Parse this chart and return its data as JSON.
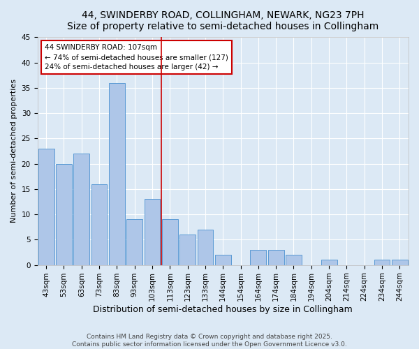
{
  "title": "44, SWINDERBY ROAD, COLLINGHAM, NEWARK, NG23 7PH",
  "subtitle": "Size of property relative to semi-detached houses in Collingham",
  "xlabel": "Distribution of semi-detached houses by size in Collingham",
  "ylabel": "Number of semi-detached properties",
  "categories": [
    "43sqm",
    "53sqm",
    "63sqm",
    "73sqm",
    "83sqm",
    "93sqm",
    "103sqm",
    "113sqm",
    "123sqm",
    "133sqm",
    "144sqm",
    "154sqm",
    "164sqm",
    "174sqm",
    "184sqm",
    "194sqm",
    "204sqm",
    "214sqm",
    "224sqm",
    "234sqm",
    "244sqm"
  ],
  "values": [
    23,
    20,
    22,
    16,
    36,
    9,
    13,
    9,
    6,
    7,
    2,
    0,
    3,
    3,
    2,
    0,
    1,
    0,
    0,
    1,
    1
  ],
  "bar_color": "#aec6e8",
  "bar_edge_color": "#5b9bd5",
  "background_color": "#dce9f5",
  "grid_color": "#ffffff",
  "vline_position": 6.5,
  "vline_color": "#cc0000",
  "annotation_text": "44 SWINDERBY ROAD: 107sqm\n← 74% of semi-detached houses are smaller (127)\n24% of semi-detached houses are larger (42) →",
  "annotation_box_color": "#ffffff",
  "annotation_box_edge": "#cc0000",
  "ylim": [
    0,
    45
  ],
  "yticks": [
    0,
    5,
    10,
    15,
    20,
    25,
    30,
    35,
    40,
    45
  ],
  "footnote": "Contains HM Land Registry data © Crown copyright and database right 2025.\nContains public sector information licensed under the Open Government Licence v3.0.",
  "title_fontsize": 10,
  "xlabel_fontsize": 9,
  "ylabel_fontsize": 8,
  "tick_fontsize": 7.5,
  "annotation_fontsize": 7.5,
  "footnote_fontsize": 6.5
}
